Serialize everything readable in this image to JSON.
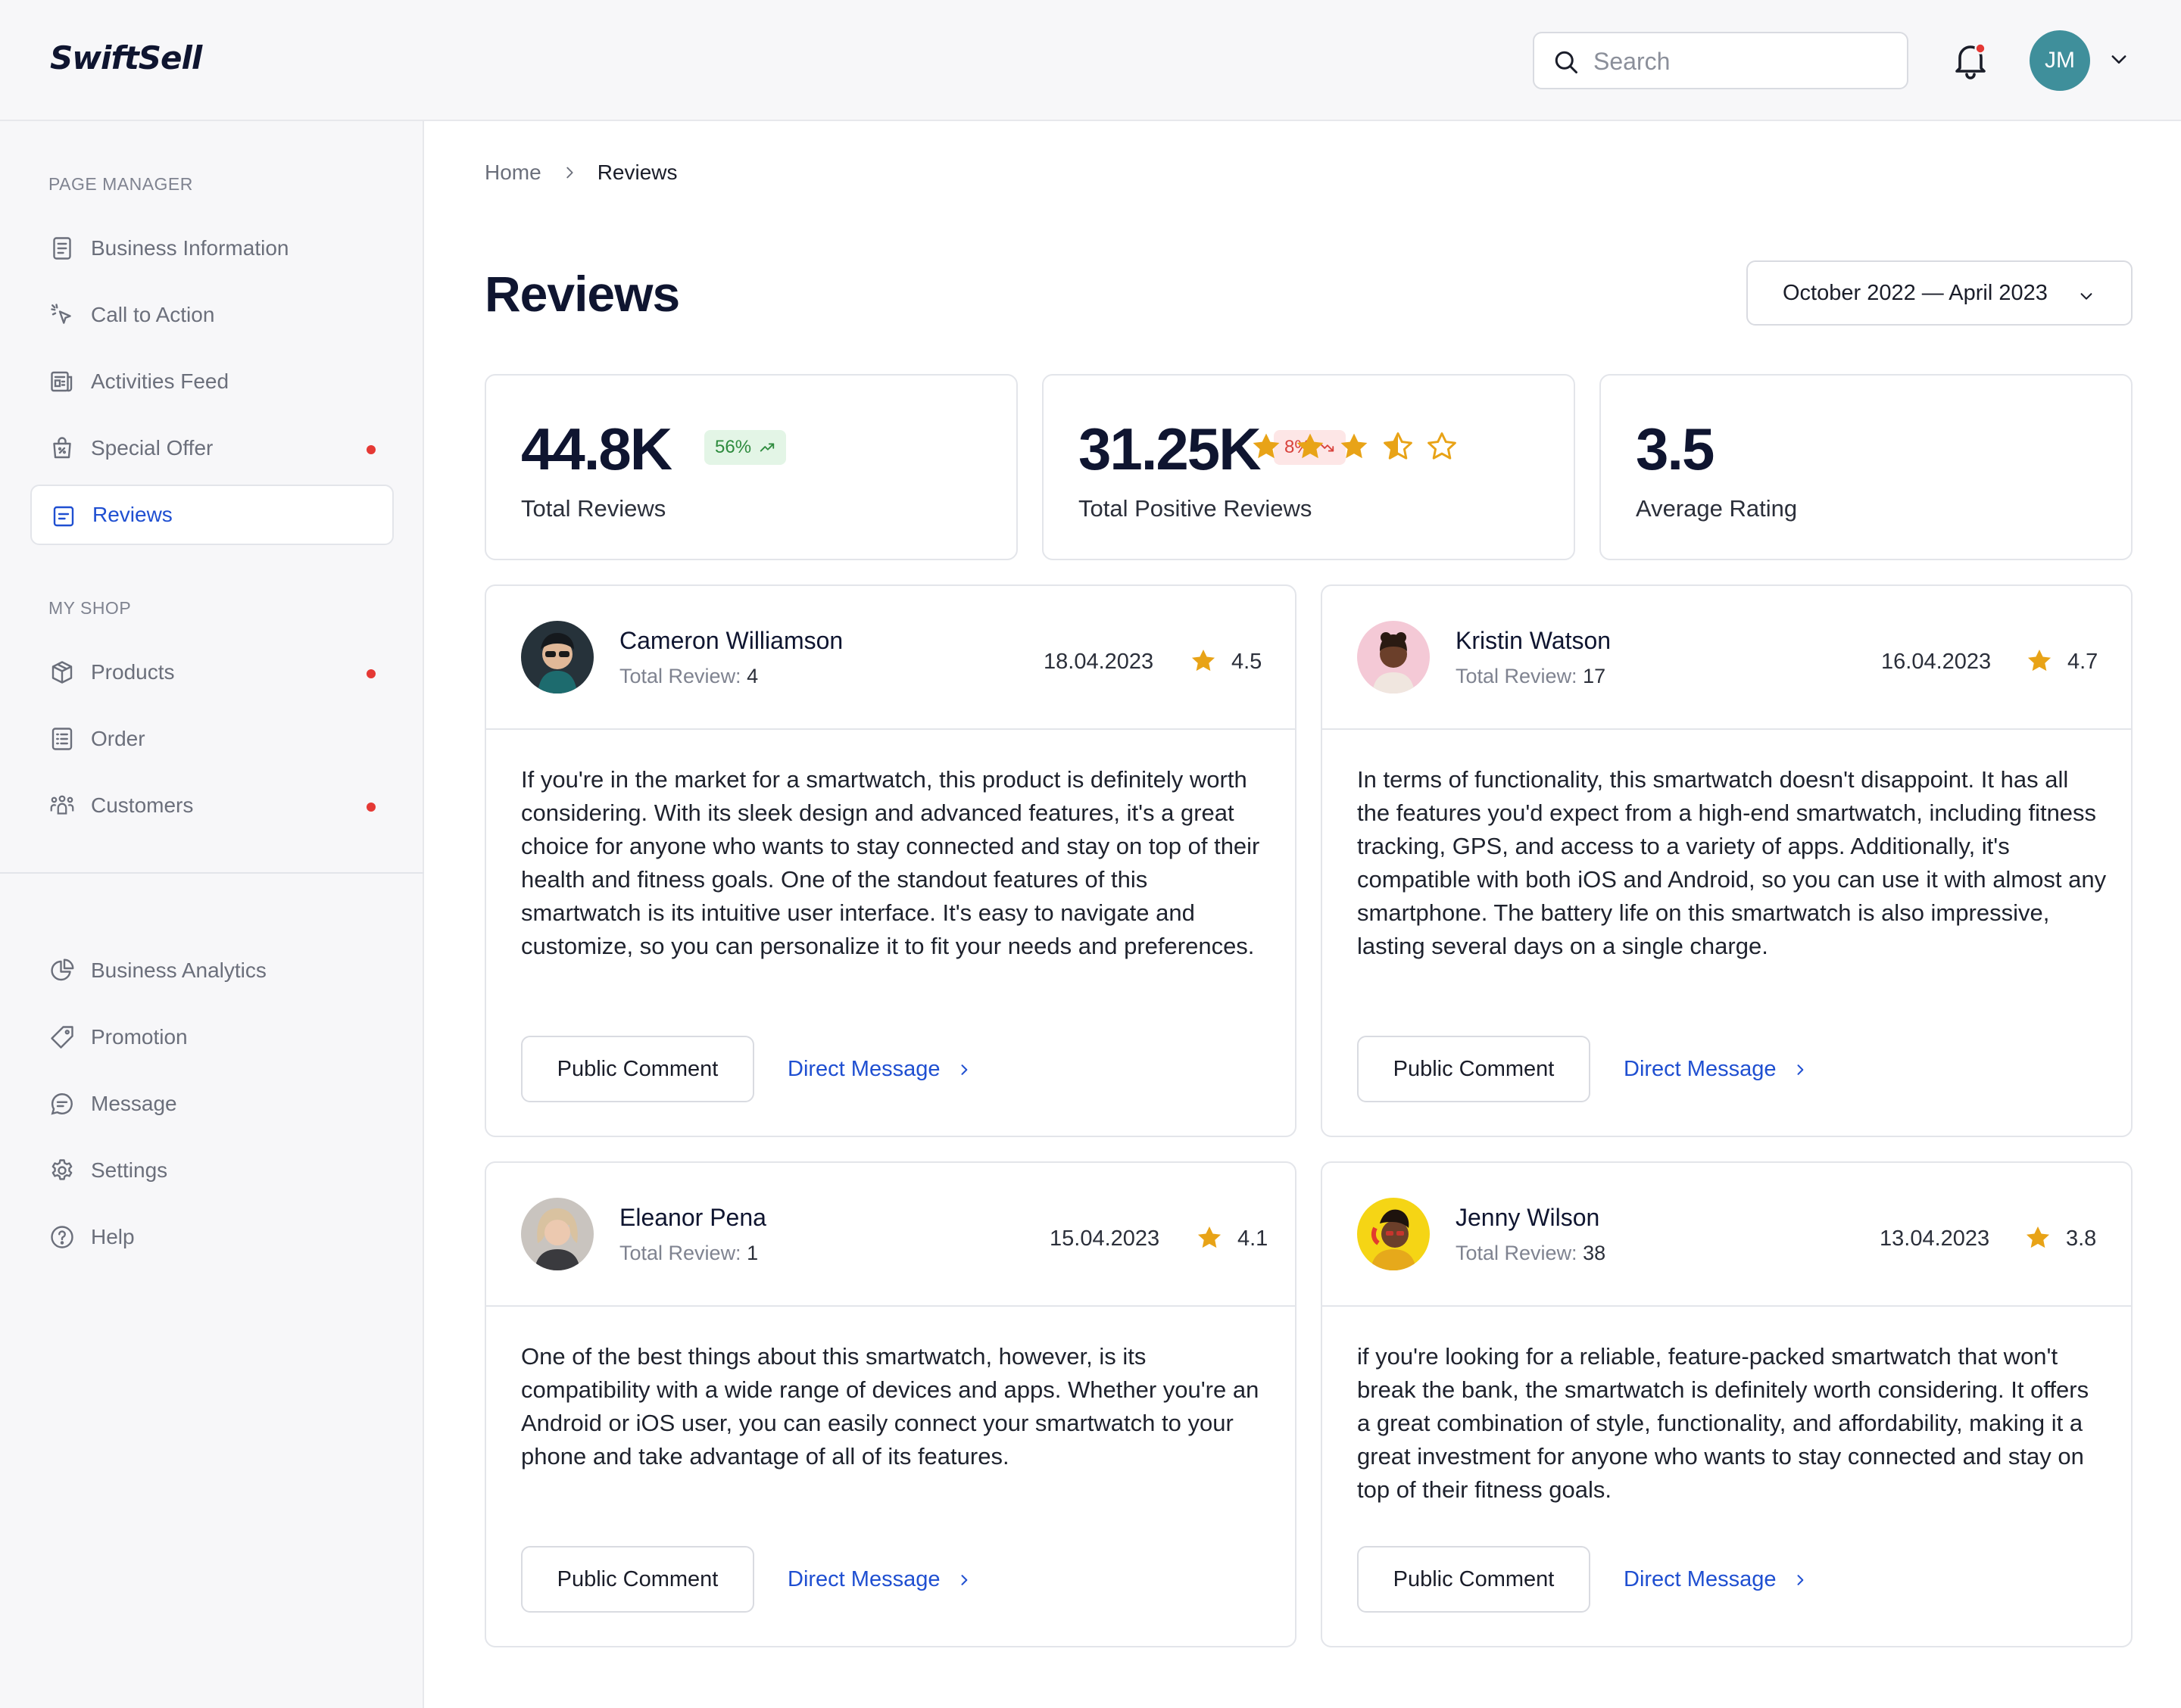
{
  "app": {
    "logo": "SwiftSell"
  },
  "header": {
    "search_placeholder": "Search",
    "avatar_initials": "JM"
  },
  "sidebar": {
    "section1": "PAGE MANAGER",
    "section2": "MY SHOP",
    "items": [
      {
        "label": "Business Information",
        "icon": "document-icon"
      },
      {
        "label": "Call to Action",
        "icon": "cursor-click-icon"
      },
      {
        "label": "Activities Feed",
        "icon": "newspaper-icon"
      },
      {
        "label": "Special Offer",
        "icon": "shopping-bag-icon",
        "notification": true
      },
      {
        "label": "Reviews",
        "icon": "review-icon",
        "active": true
      },
      {
        "label": "Products",
        "icon": "box-icon",
        "notification": true
      },
      {
        "label": "Order",
        "icon": "list-icon"
      },
      {
        "label": "Customers",
        "icon": "users-icon",
        "notification": true
      },
      {
        "label": "Business Analytics",
        "icon": "pie-chart-icon"
      },
      {
        "label": "Promotion",
        "icon": "tag-icon"
      },
      {
        "label": "Message",
        "icon": "chat-icon"
      },
      {
        "label": "Settings",
        "icon": "gear-icon"
      },
      {
        "label": "Help",
        "icon": "help-icon"
      }
    ]
  },
  "breadcrumb": {
    "home": "Home",
    "current": "Reviews"
  },
  "page": {
    "title": "Reviews",
    "date_range": "October 2022 — April 2023"
  },
  "stats": {
    "total": {
      "value": "44.8K",
      "badge": "56%",
      "label": "Total Reviews"
    },
    "positive": {
      "value": "31.25K",
      "badge": "8%",
      "label": "Total Positive Reviews"
    },
    "average": {
      "value": "3.5",
      "rating": 3.5,
      "label": "Average Rating"
    }
  },
  "colors": {
    "accent": "#1f4fd1",
    "star": "#e8a317",
    "positive": "#2e8b3e",
    "negative": "#d8413b",
    "avatar": "#3f8f9b"
  },
  "reviews": [
    {
      "name": "Cameron Williamson",
      "total_label": "Total Review:",
      "total": "4",
      "date": "18.04.2023",
      "rating": "4.5",
      "text": "If you're in the market for a smartwatch, this product is definitely worth considering. With its sleek design and advanced features, it's a great choice for anyone who wants to stay connected and stay on top of their health and fitness goals. One of the standout features of this smartwatch is its intuitive user interface. It's easy to navigate and customize, so you can personalize it to fit your needs and preferences.",
      "public_comment": "Public Comment",
      "direct_message": "Direct Message"
    },
    {
      "name": "Kristin Watson",
      "total_label": "Total Review:",
      "total": "17",
      "date": "16.04.2023",
      "rating": "4.7",
      "text": "In terms of functionality, this smartwatch doesn't disappoint. It has all the features you'd expect from a high-end smartwatch, including fitness tracking, GPS, and access to a variety of apps. Additionally, it's compatible with both iOS and Android, so you can use it with almost any smartphone. The battery life on this smartwatch is also impressive, lasting several days on a single charge.",
      "public_comment": "Public Comment",
      "direct_message": "Direct Message"
    },
    {
      "name": "Eleanor Pena",
      "total_label": "Total Review:",
      "total": "1",
      "date": "15.04.2023",
      "rating": "4.1",
      "text": "One of the best things about this smartwatch, however, is its compatibility with a wide range of devices and apps. Whether you're an Android or iOS user, you can easily connect your smartwatch to your phone and take advantage of all of its features.",
      "public_comment": "Public Comment",
      "direct_message": "Direct Message"
    },
    {
      "name": "Jenny Wilson",
      "total_label": "Total Review:",
      "total": "38",
      "date": "13.04.2023",
      "rating": "3.8",
      "text": "if you're looking for a reliable, feature-packed smartwatch that won't break the bank, the smartwatch is definitely worth considering. It offers a great combination of style, functionality, and affordability, making it a great investment for anyone who wants to stay connected and stay on top of their fitness goals.",
      "public_comment": "Public Comment",
      "direct_message": "Direct Message"
    }
  ]
}
